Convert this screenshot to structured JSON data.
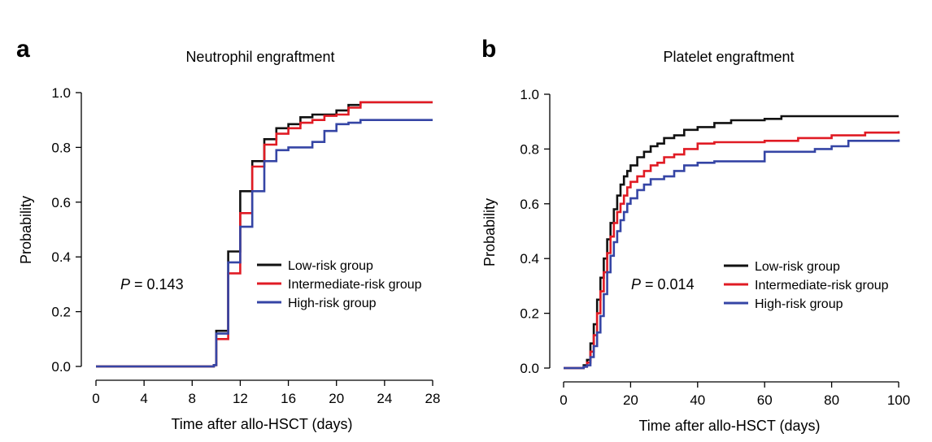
{
  "charts": [
    {
      "panel_letter": "a",
      "chart_data": {
        "type": "line",
        "title": "Neutrophil engraftment",
        "xlabel": "Time after allo-HSCT (days)",
        "ylabel": "Probability",
        "xlim": [
          0,
          28
        ],
        "ylim": [
          0,
          1
        ],
        "xticks": [
          0,
          4,
          8,
          12,
          16,
          20,
          24,
          28
        ],
        "yticks": [
          0.0,
          0.2,
          0.4,
          0.6,
          0.8,
          1.0
        ],
        "ytick_labels": [
          "0.0",
          "0.2",
          "0.4",
          "0.6",
          "0.8",
          "1.0"
        ],
        "step": true,
        "legend_position": "right",
        "annotation": {
          "italic": "P",
          "text": " = 0.143"
        },
        "series": [
          {
            "name": "Low-risk group",
            "color": "#111111",
            "x": [
              0,
              9.8,
              10,
              11,
              12,
              13,
              14,
              15,
              16,
              17,
              18,
              19,
              20,
              21,
              22,
              28
            ],
            "y": [
              0,
              0.005,
              0.13,
              0.42,
              0.64,
              0.75,
              0.83,
              0.87,
              0.885,
              0.91,
              0.92,
              0.92,
              0.935,
              0.955,
              0.965,
              0.965
            ]
          },
          {
            "name": "Intermediate-risk group",
            "color": "#e01b24",
            "x": [
              0,
              9.8,
              10,
              11,
              12,
              13,
              14,
              15,
              16,
              17,
              18,
              19,
              20,
              21,
              22,
              28
            ],
            "y": [
              0,
              0.005,
              0.1,
              0.34,
              0.56,
              0.73,
              0.81,
              0.85,
              0.87,
              0.89,
              0.9,
              0.915,
              0.92,
              0.945,
              0.965,
              0.965
            ]
          },
          {
            "name": "High-risk group",
            "color": "#3545a5",
            "x": [
              0,
              9.8,
              10,
              11,
              12,
              13,
              14,
              15,
              16,
              17,
              18,
              19,
              20,
              21,
              22,
              28
            ],
            "y": [
              0,
              0.005,
              0.12,
              0.38,
              0.51,
              0.64,
              0.75,
              0.79,
              0.8,
              0.8,
              0.82,
              0.86,
              0.885,
              0.89,
              0.9,
              0.9
            ]
          }
        ]
      }
    },
    {
      "panel_letter": "b",
      "chart_data": {
        "type": "line",
        "title": "Platelet engraftment",
        "xlabel": "Time after allo-HSCT (days)",
        "ylabel": "Probability",
        "xlim": [
          0,
          100
        ],
        "ylim": [
          0,
          1
        ],
        "xticks": [
          0,
          20,
          40,
          60,
          80,
          100
        ],
        "yticks": [
          0.0,
          0.2,
          0.4,
          0.6,
          0.8,
          1.0
        ],
        "ytick_labels": [
          "0.0",
          "0.2",
          "0.4",
          "0.6",
          "0.8",
          "1.0"
        ],
        "step": true,
        "legend_position": "right",
        "annotation": {
          "italic": "P",
          "text": " = 0.014"
        },
        "series": [
          {
            "name": "Low-risk group",
            "color": "#111111",
            "x": [
              0,
              6,
              7,
              8,
              9,
              10,
              11,
              12,
              13,
              14,
              15,
              16,
              17,
              18,
              19,
              20,
              22,
              24,
              26,
              28,
              30,
              33,
              36,
              40,
              45,
              50,
              60,
              65,
              68,
              100
            ],
            "y": [
              0,
              0.01,
              0.03,
              0.09,
              0.16,
              0.25,
              0.33,
              0.4,
              0.47,
              0.53,
              0.58,
              0.63,
              0.67,
              0.7,
              0.72,
              0.74,
              0.77,
              0.79,
              0.81,
              0.82,
              0.84,
              0.85,
              0.87,
              0.88,
              0.895,
              0.905,
              0.91,
              0.92,
              0.92,
              0.92
            ]
          },
          {
            "name": "Intermediate-risk group",
            "color": "#e01b24",
            "x": [
              0,
              6,
              7,
              8,
              9,
              10,
              11,
              12,
              13,
              14,
              15,
              16,
              17,
              18,
              19,
              20,
              22,
              24,
              26,
              28,
              30,
              33,
              36,
              40,
              45,
              50,
              60,
              70,
              80,
              90,
              100
            ],
            "y": [
              0,
              0.005,
              0.02,
              0.06,
              0.12,
              0.2,
              0.28,
              0.35,
              0.42,
              0.48,
              0.53,
              0.57,
              0.6,
              0.63,
              0.66,
              0.68,
              0.7,
              0.72,
              0.74,
              0.75,
              0.77,
              0.78,
              0.8,
              0.82,
              0.825,
              0.825,
              0.83,
              0.84,
              0.85,
              0.86,
              0.865
            ]
          },
          {
            "name": "High-risk group",
            "color": "#3545a5",
            "x": [
              0,
              6,
              7,
              8,
              9,
              10,
              11,
              12,
              13,
              14,
              15,
              16,
              17,
              18,
              19,
              20,
              22,
              24,
              26,
              28,
              30,
              33,
              36,
              40,
              45,
              50,
              60,
              70,
              75,
              80,
              85,
              100
            ],
            "y": [
              0,
              0.005,
              0.01,
              0.04,
              0.08,
              0.13,
              0.19,
              0.27,
              0.35,
              0.41,
              0.46,
              0.5,
              0.54,
              0.57,
              0.6,
              0.62,
              0.65,
              0.67,
              0.69,
              0.69,
              0.7,
              0.72,
              0.74,
              0.75,
              0.755,
              0.755,
              0.79,
              0.79,
              0.8,
              0.81,
              0.83,
              0.835
            ]
          }
        ]
      }
    }
  ]
}
